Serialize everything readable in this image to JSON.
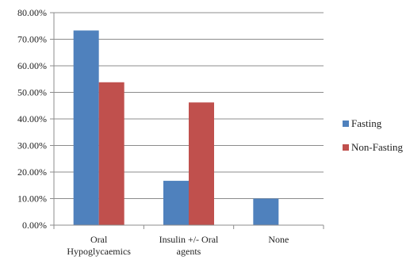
{
  "chart_data": {
    "type": "bar",
    "title": "",
    "xlabel": "",
    "ylabel": "",
    "categories": [
      [
        "Oral",
        "Hypoglycaemics"
      ],
      [
        "Insulin +/- Oral",
        "agents"
      ],
      [
        "None"
      ]
    ],
    "series": [
      {
        "name": "Fasting",
        "color": "#4F81BD",
        "values": [
          73.3,
          16.7,
          10.0
        ]
      },
      {
        "name": "Non-Fasting",
        "color": "#C0504D",
        "values": [
          53.8,
          46.2,
          0.0
        ]
      }
    ],
    "ylim": [
      0,
      80
    ],
    "yticks": [
      "0.00%",
      "10.00%",
      "20.00%",
      "30.00%",
      "40.00%",
      "50.00%",
      "60.00%",
      "70.00%",
      "80.00%"
    ],
    "grid": true,
    "legend_position": "right"
  }
}
